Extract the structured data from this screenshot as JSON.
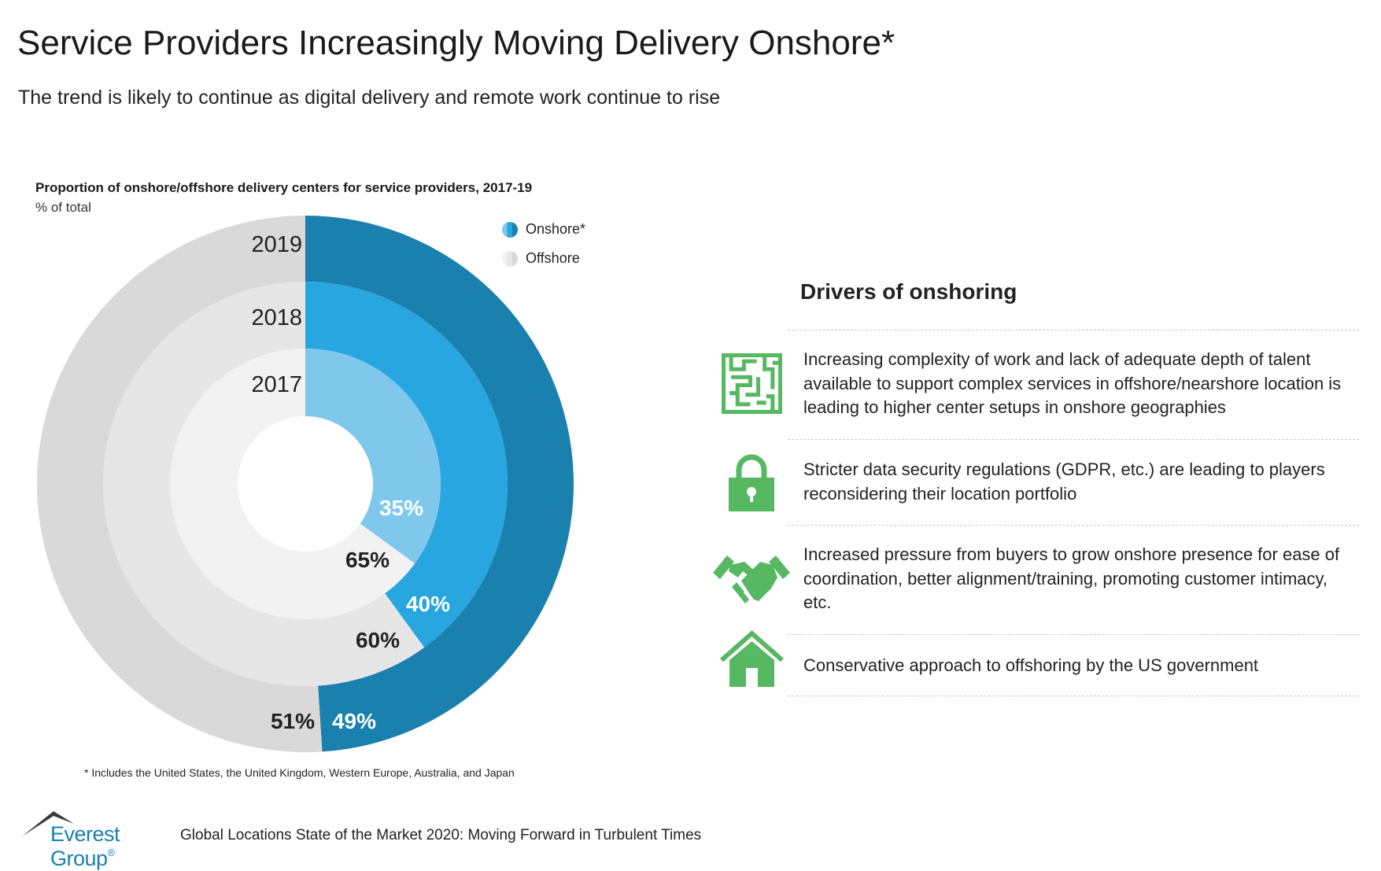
{
  "header": {
    "title": "Service Providers Increasingly Moving Delivery Onshore*",
    "subtitle": "The trend is likely to continue as digital delivery and remote work continue to rise"
  },
  "chart_data": {
    "type": "pie",
    "subtype": "nested-donut",
    "title": "Proportion of onshore/offshore delivery centers for service providers, 2017-19",
    "unit_label": "% of total",
    "categories": [
      "2017",
      "2018",
      "2019"
    ],
    "series": [
      {
        "name": "Onshore*",
        "values": [
          35,
          40,
          49
        ],
        "labels": [
          "35%",
          "40%",
          "49%"
        ],
        "colors": [
          "#7fc8ec",
          "#27a6df",
          "#1a80ad"
        ]
      },
      {
        "name": "Offshore",
        "values": [
          65,
          60,
          51
        ],
        "labels": [
          "65%",
          "60%",
          "51%"
        ],
        "colors": [
          "#f2f2f2",
          "#e6e6e6",
          "#d9d9d9"
        ]
      }
    ],
    "legend": {
      "placement": "top-right",
      "items": [
        {
          "label": "Onshore*",
          "color": "#27a6df"
        },
        {
          "label": "Offshore",
          "color": "#e6e6e6"
        }
      ]
    },
    "footnote": "* Includes the United States, the United Kingdom, Western Europe, Australia, and Japan"
  },
  "drivers": {
    "title": "Drivers of onshoring",
    "icon_color": "#57b862",
    "items": [
      {
        "icon": "maze-icon",
        "text": "Increasing complexity of work and lack of adequate depth of talent available to support complex services in offshore/nearshore location is leading to higher center setups in onshore geographies"
      },
      {
        "icon": "lock-icon",
        "text": "Stricter data security regulations (GDPR, etc.) are leading to players reconsidering their location portfolio"
      },
      {
        "icon": "handshake-icon",
        "text": "Increased pressure from buyers to grow onshore presence for ease of coordination, better alignment/training, promoting customer intimacy, etc."
      },
      {
        "icon": "house-icon",
        "text": "Conservative approach to offshoring by the US government"
      }
    ]
  },
  "footer": {
    "logo_text": "Everest Group",
    "logo_reg": "®",
    "source": "Global Locations State of the Market 2020: Moving Forward in Turbulent Times"
  }
}
